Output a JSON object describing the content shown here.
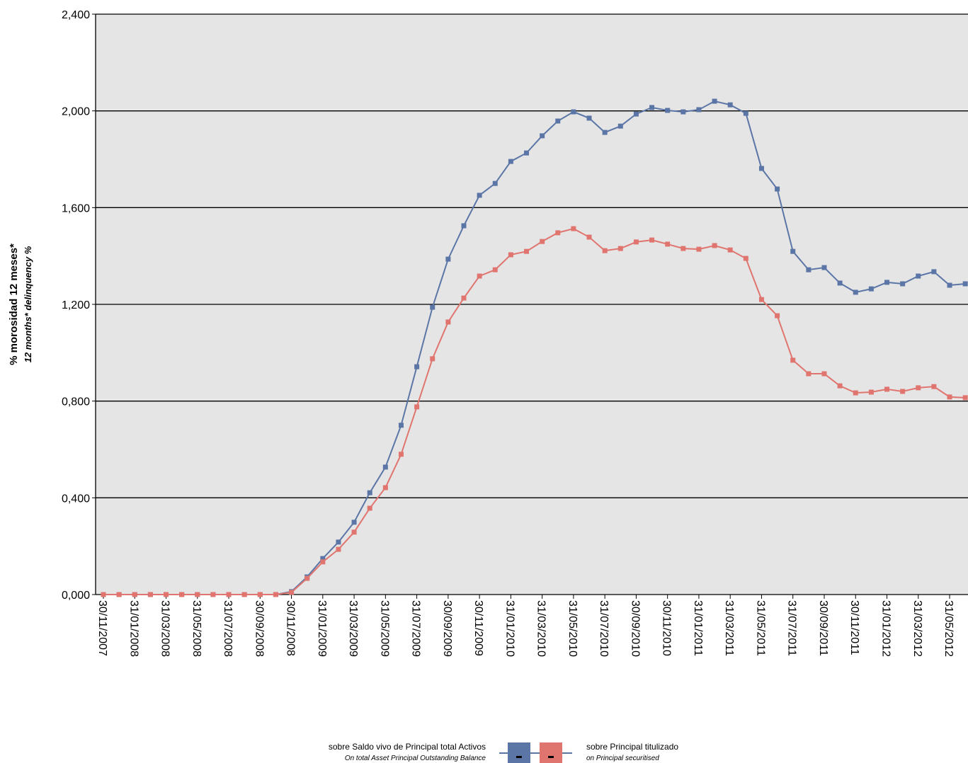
{
  "chart_data": {
    "type": "line",
    "y_label": "% morosidad 12 meses*",
    "y_label_en": "12 months* delinquency %",
    "categories": [
      "30/11/2007",
      null,
      "31/01/2008",
      null,
      "31/03/2008",
      null,
      "31/05/2008",
      null,
      "31/07/2008",
      null,
      "30/09/2008",
      null,
      "30/11/2008",
      null,
      "31/01/2009",
      null,
      "31/03/2009",
      null,
      "31/05/2009",
      null,
      "31/07/2009",
      null,
      "30/09/2009",
      null,
      "30/11/2009",
      null,
      "31/01/2010",
      null,
      "31/03/2010",
      null,
      "31/05/2010",
      null,
      "31/07/2010",
      null,
      "30/09/2010",
      null,
      "30/11/2010",
      null,
      "31/01/2011",
      null,
      "31/03/2011",
      null,
      "31/05/2011",
      null,
      "31/07/2011",
      null,
      "30/09/2011",
      null,
      "30/11/2011",
      null,
      "31/01/2012",
      null,
      "31/03/2012",
      null,
      "31/05/2012",
      null
    ],
    "series": [
      {
        "name": "sobre Saldo vivo de Principal total Activos",
        "name_en": "On total Asset Principal Outstanding Balance",
        "color": "#5b76a6",
        "values": [
          0,
          0,
          0,
          0,
          0,
          0,
          0,
          0,
          0,
          0,
          0,
          0,
          0.012,
          0.073,
          0.149,
          0.217,
          0.299,
          0.421,
          0.527,
          0.7,
          0.942,
          1.188,
          1.387,
          1.525,
          1.651,
          1.7,
          1.791,
          1.826,
          1.897,
          1.958,
          1.996,
          1.97,
          1.911,
          1.937,
          1.987,
          2.014,
          2.002,
          1.996,
          2.005,
          2.04,
          2.025,
          1.99,
          1.762,
          1.677,
          1.419,
          1.343,
          1.352,
          1.288,
          1.25,
          1.264,
          1.291,
          1.285,
          1.317,
          1.335,
          1.279,
          1.285
        ]
      },
      {
        "name": "sobre Principal titulizado",
        "name_en": "on Principal securitised",
        "color": "#e0756f",
        "values": [
          0,
          0,
          0,
          0,
          0,
          0,
          0,
          0,
          0,
          0,
          0,
          0,
          0.009,
          0.067,
          0.135,
          0.187,
          0.258,
          0.357,
          0.442,
          0.58,
          0.776,
          0.975,
          1.127,
          1.226,
          1.317,
          1.343,
          1.405,
          1.419,
          1.46,
          1.496,
          1.513,
          1.478,
          1.422,
          1.431,
          1.458,
          1.466,
          1.449,
          1.431,
          1.428,
          1.443,
          1.425,
          1.39,
          1.22,
          1.153,
          0.969,
          0.913,
          0.913,
          0.863,
          0.834,
          0.837,
          0.849,
          0.84,
          0.855,
          0.86,
          0.817,
          0.814
        ]
      }
    ],
    "ylim": [
      0,
      2.4
    ],
    "yticks": [
      {
        "value": 0,
        "label": "0,000"
      },
      {
        "value": 0.4,
        "label": "0,400"
      },
      {
        "value": 0.8,
        "label": "0,800"
      },
      {
        "value": 1.2,
        "label": "1,200"
      },
      {
        "value": 1.6,
        "label": "1,600"
      },
      {
        "value": 2.0,
        "label": "2,000"
      },
      {
        "value": 2.4,
        "label": "2,400"
      }
    ],
    "grid": true,
    "background": "#e5e5e5"
  }
}
